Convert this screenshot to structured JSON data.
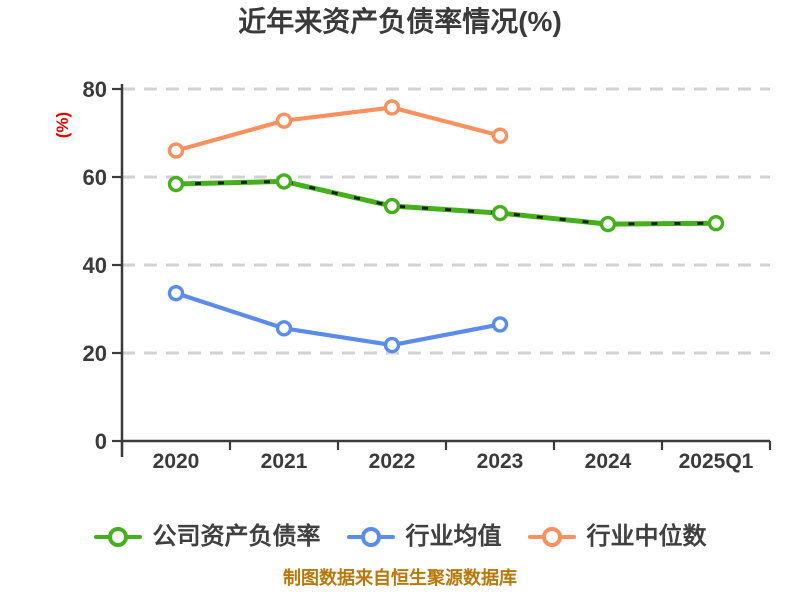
{
  "title": "近年来资产负债率情况(%)",
  "y_axis_label": "(%)",
  "footer_note": "制图数据来自恒生聚源数据库",
  "colors": {
    "title": "#3a3a3a",
    "axis": "#3b3b3b",
    "grid": "#d2d2d2",
    "tick_label": "#3b3b3b",
    "legend_text": "#404040",
    "y_axis_label": "#e60000",
    "footer": "#b9780a",
    "marker_fill": "#ffffff",
    "line_label_marks": "#161616"
  },
  "chart_data": {
    "type": "line",
    "title": "近年来资产负债率情况(%)",
    "ylabel": "(%)",
    "categories": [
      "2020",
      "2021",
      "2022",
      "2023",
      "2024",
      "2025Q1"
    ],
    "series": [
      {
        "name": "公司资产负债率",
        "color": "#46af1e",
        "marker": "circle",
        "values": [
          58.4,
          59.0,
          53.4,
          51.8,
          49.3,
          49.5
        ]
      },
      {
        "name": "行业均值",
        "color": "#5b8ceb",
        "marker": "circle",
        "values": [
          33.6,
          25.6,
          21.8,
          26.5
        ]
      },
      {
        "name": "行业中位数",
        "color": "#f8905f",
        "marker": "circle",
        "values": [
          66.0,
          72.8,
          75.8,
          69.4
        ]
      }
    ],
    "ylim": [
      0,
      80
    ],
    "yticks": [
      0,
      20,
      40,
      60,
      80
    ],
    "grid": "horizontal-dashed",
    "legend_position": "bottom",
    "source_note": "制图数据来自恒生聚源数据库"
  }
}
